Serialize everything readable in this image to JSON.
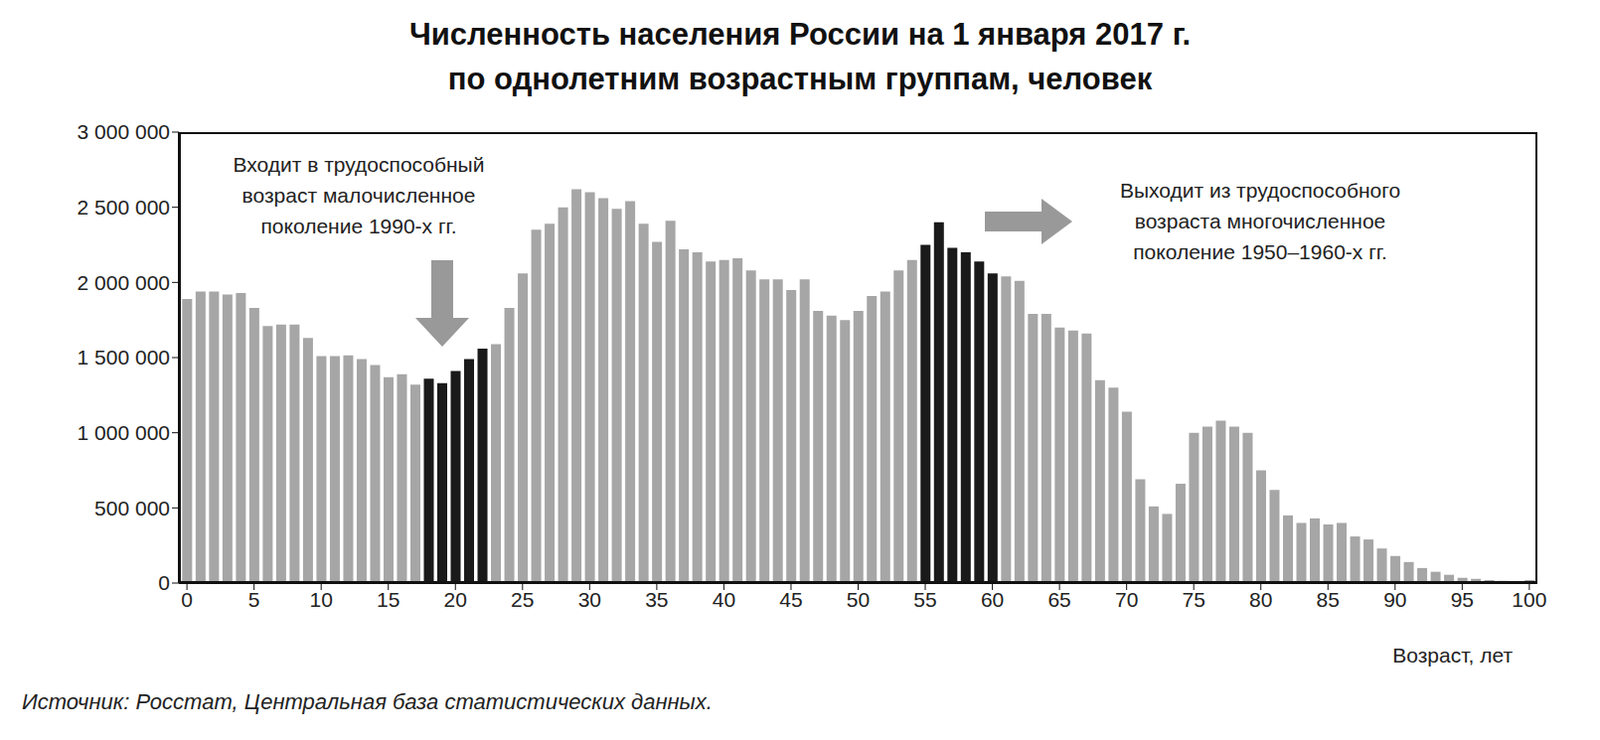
{
  "chart_data": {
    "type": "bar",
    "title": "Численность населения России на 1 января 2017 г.\nпо однолетним возрастным группам, человек",
    "xlabel": "Возраст, лет",
    "source": "Источник: Росстат, Центральная база статистических данных.",
    "annotations": [
      {
        "text": "Входит в трудоспособный\nвозраст малочисленное\nпоколение 1990-х гг."
      },
      {
        "text": "Выходит из трудоспособного\nвозраста многочисленное\nпоколение 1950–1960-х гг."
      }
    ],
    "x": [
      0,
      1,
      2,
      3,
      4,
      5,
      6,
      7,
      8,
      9,
      10,
      11,
      12,
      13,
      14,
      15,
      16,
      17,
      18,
      19,
      20,
      21,
      22,
      23,
      24,
      25,
      26,
      27,
      28,
      29,
      30,
      31,
      32,
      33,
      34,
      35,
      36,
      37,
      38,
      39,
      40,
      41,
      42,
      43,
      44,
      45,
      46,
      47,
      48,
      49,
      50,
      51,
      52,
      53,
      54,
      55,
      56,
      57,
      58,
      59,
      60,
      61,
      62,
      63,
      64,
      65,
      66,
      67,
      68,
      69,
      70,
      71,
      72,
      73,
      74,
      75,
      76,
      77,
      78,
      79,
      80,
      81,
      82,
      83,
      84,
      85,
      86,
      87,
      88,
      89,
      90,
      91,
      92,
      93,
      94,
      95,
      96,
      97,
      98,
      99,
      100
    ],
    "values": [
      1890000,
      1940000,
      1940000,
      1920000,
      1930000,
      1830000,
      1710000,
      1720000,
      1720000,
      1630000,
      1510000,
      1510000,
      1515000,
      1490000,
      1450000,
      1370000,
      1390000,
      1320000,
      1360000,
      1330000,
      1410000,
      1490000,
      1560000,
      1590000,
      1830000,
      2060000,
      2350000,
      2390000,
      2500000,
      2620000,
      2600000,
      2560000,
      2490000,
      2540000,
      2390000,
      2270000,
      2410000,
      2220000,
      2200000,
      2140000,
      2150000,
      2160000,
      2080000,
      2020000,
      2020000,
      1950000,
      2020000,
      1810000,
      1780000,
      1750000,
      1810000,
      1910000,
      1940000,
      2080000,
      2150000,
      2250000,
      2400000,
      2230000,
      2200000,
      2140000,
      2060000,
      2040000,
      2010000,
      1790000,
      1790000,
      1700000,
      1680000,
      1660000,
      1350000,
      1300000,
      1140000,
      690000,
      510000,
      460000,
      660000,
      1000000,
      1040000,
      1080000,
      1040000,
      1000000,
      750000,
      620000,
      450000,
      400000,
      430000,
      390000,
      400000,
      310000,
      290000,
      230000,
      180000,
      140000,
      100000,
      75000,
      55000,
      35000,
      28000,
      20000,
      15000,
      12000,
      20000
    ],
    "colors": [
      "#a6a6a6",
      "#a6a6a6",
      "#a6a6a6",
      "#a6a6a6",
      "#a6a6a6",
      "#a6a6a6",
      "#a6a6a6",
      "#a6a6a6",
      "#a6a6a6",
      "#a6a6a6",
      "#a6a6a6",
      "#a6a6a6",
      "#a6a6a6",
      "#a6a6a6",
      "#a6a6a6",
      "#a6a6a6",
      "#a6a6a6",
      "#a6a6a6",
      "#1a1a1a",
      "#1a1a1a",
      "#1a1a1a",
      "#1a1a1a",
      "#1a1a1a",
      "#a6a6a6",
      "#a6a6a6",
      "#a6a6a6",
      "#a6a6a6",
      "#a6a6a6",
      "#a6a6a6",
      "#a6a6a6",
      "#a6a6a6",
      "#a6a6a6",
      "#a6a6a6",
      "#a6a6a6",
      "#a6a6a6",
      "#a6a6a6",
      "#a6a6a6",
      "#a6a6a6",
      "#a6a6a6",
      "#a6a6a6",
      "#a6a6a6",
      "#a6a6a6",
      "#a6a6a6",
      "#a6a6a6",
      "#a6a6a6",
      "#a6a6a6",
      "#a6a6a6",
      "#a6a6a6",
      "#a6a6a6",
      "#a6a6a6",
      "#a6a6a6",
      "#a6a6a6",
      "#a6a6a6",
      "#a6a6a6",
      "#a6a6a6",
      "#1a1a1a",
      "#1a1a1a",
      "#1a1a1a",
      "#1a1a1a",
      "#1a1a1a",
      "#1a1a1a",
      "#a6a6a6",
      "#a6a6a6",
      "#a6a6a6",
      "#a6a6a6",
      "#a6a6a6",
      "#a6a6a6",
      "#a6a6a6",
      "#a6a6a6",
      "#a6a6a6",
      "#a6a6a6",
      "#a6a6a6",
      "#a6a6a6",
      "#a6a6a6",
      "#a6a6a6",
      "#a6a6a6",
      "#a6a6a6",
      "#a6a6a6",
      "#a6a6a6",
      "#a6a6a6",
      "#a6a6a6",
      "#a6a6a6",
      "#a6a6a6",
      "#a6a6a6",
      "#a6a6a6",
      "#a6a6a6",
      "#a6a6a6",
      "#a6a6a6",
      "#a6a6a6",
      "#a6a6a6",
      "#a6a6a6",
      "#a6a6a6",
      "#a6a6a6",
      "#a6a6a6",
      "#a6a6a6",
      "#a6a6a6",
      "#a6a6a6",
      "#a6a6a6",
      "#a6a6a6",
      "#a6a6a6",
      "#a6a6a6"
    ],
    "xlim": [
      -0.6,
      100.6
    ],
    "xticks": [
      0,
      5,
      10,
      15,
      20,
      25,
      30,
      35,
      40,
      45,
      50,
      55,
      60,
      65,
      70,
      75,
      80,
      85,
      90,
      95,
      100
    ],
    "ylim": [
      0,
      3000000
    ],
    "yticks": [
      0,
      {
        "value": 500000,
        "label": "500 000"
      },
      {
        "value": 1000000,
        "label": "1 000 000"
      },
      {
        "value": 1500000,
        "label": "1 500 000"
      },
      {
        "value": 2000000,
        "label": "2 000 000"
      },
      {
        "value": 2500000,
        "label": "2 500 000"
      },
      {
        "value": 3000000,
        "label": "3 000 000"
      }
    ],
    "grid": false
  }
}
